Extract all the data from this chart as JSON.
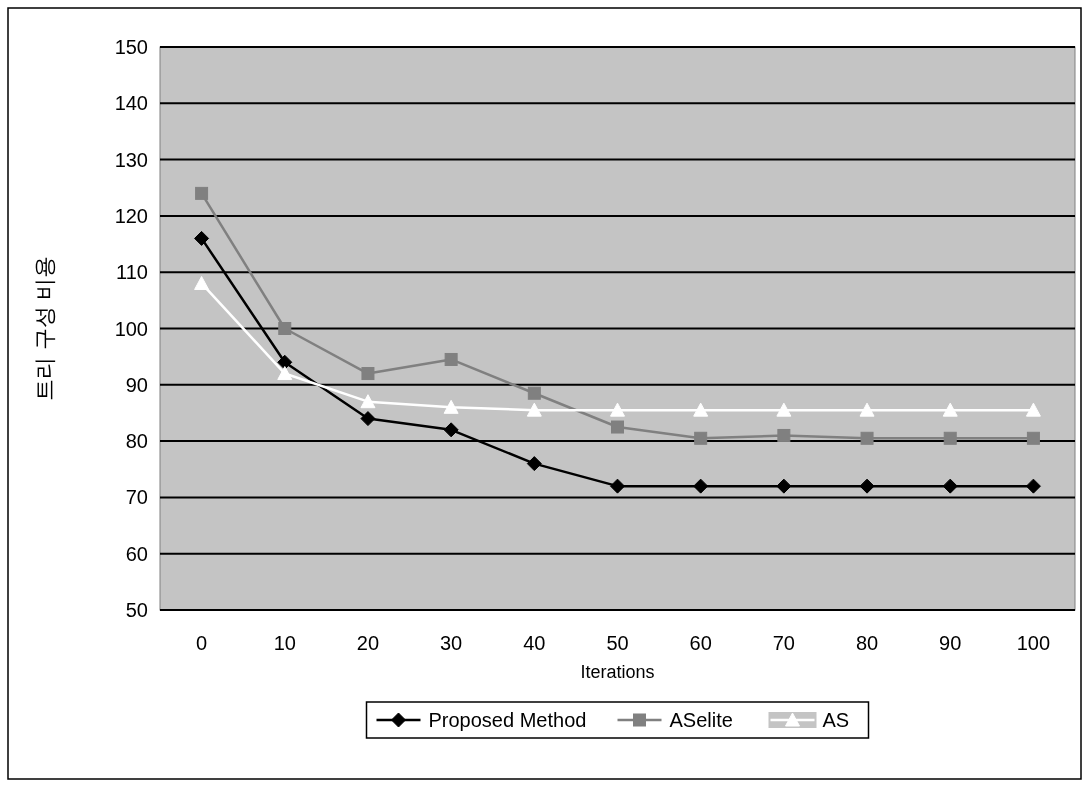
{
  "chart_data": {
    "type": "line",
    "xlabel": "Iterations",
    "ylabel": "트리 구성 비용",
    "categories": [
      "0",
      "10",
      "20",
      "30",
      "40",
      "50",
      "60",
      "70",
      "80",
      "90",
      "100"
    ],
    "series": [
      {
        "name": "Proposed Method",
        "color": "#000000",
        "marker": "diamond",
        "values": [
          116,
          94,
          84,
          82,
          76,
          72,
          72,
          72,
          72,
          72,
          72
        ]
      },
      {
        "name": "ASelite",
        "color": "#808080",
        "marker": "square",
        "values": [
          124,
          100,
          92,
          94.5,
          88.5,
          82.5,
          80.5,
          81,
          80.5,
          80.5,
          80.5
        ]
      },
      {
        "name": "AS",
        "color": "#ffffff",
        "marker": "triangle",
        "values": [
          108,
          92,
          87,
          86,
          85.5,
          85.5,
          85.5,
          85.5,
          85.5,
          85.5,
          85.5
        ]
      }
    ],
    "ylim": [
      50,
      150
    ],
    "yticks": [
      50,
      60,
      70,
      80,
      90,
      100,
      110,
      120,
      130,
      140,
      150
    ],
    "grid": "y",
    "legend": "bottom",
    "line_style": "solid"
  }
}
